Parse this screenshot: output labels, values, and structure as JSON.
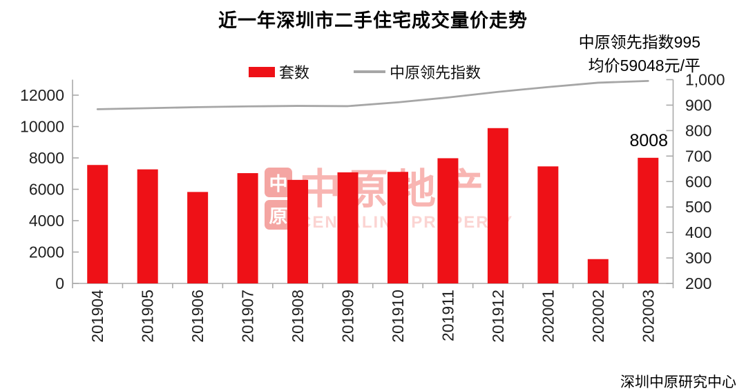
{
  "title": "近一年深圳市二手住宅成交量价走势",
  "legend": {
    "items": [
      {
        "label": "套数",
        "marker": "bar-swatch",
        "color": "#ee1117"
      },
      {
        "label": "中原领先指数",
        "marker": "line-swatch",
        "color": "#a6a6a6"
      }
    ]
  },
  "annotation": {
    "line1": "中原领先指数995",
    "line2": "均价59048元/平"
  },
  "footer": "深圳中原研究中心",
  "watermark": {
    "seal_top_char": "中",
    "seal_bottom_char": "原",
    "brand": "中原地产",
    "brand_en": "CENTALINE PROPERTY"
  },
  "chart_data": {
    "type": "combo",
    "title": "近一年深圳市二手住宅成交量价走势",
    "categories": [
      "201904",
      "201905",
      "201906",
      "201907",
      "201908",
      "201909",
      "201910",
      "201911",
      "201912",
      "202001",
      "202002",
      "202003"
    ],
    "series": [
      {
        "name": "套数",
        "type": "bar",
        "axis": "left",
        "color": "#ee1117",
        "values": [
          7550,
          7270,
          5830,
          7030,
          6600,
          7080,
          7110,
          7980,
          9900,
          7460,
          1550,
          8008
        ]
      },
      {
        "name": "中原领先指数",
        "type": "line",
        "axis": "right",
        "color": "#a6a6a6",
        "values": [
          884,
          888,
          892,
          895,
          897,
          896,
          911,
          930,
          952,
          971,
          988,
          995
        ]
      }
    ],
    "bar_data_label": {
      "category": "202003",
      "text": "8008"
    },
    "left_axis": {
      "min": 0,
      "max": 12000,
      "ticks": [
        0,
        2000,
        4000,
        6000,
        8000,
        10000,
        12000
      ],
      "tick_labels": [
        "0",
        "2000",
        "4000",
        "6000",
        "8000",
        "10000",
        "12000"
      ]
    },
    "right_axis": {
      "min": 200,
      "max": 1000,
      "ticks": [
        200,
        300,
        400,
        500,
        600,
        700,
        800,
        900,
        1000
      ],
      "tick_labels": [
        "200",
        "300",
        "400",
        "500",
        "600",
        "700",
        "800",
        "900",
        "1,000"
      ]
    },
    "grid": false,
    "legend_position": "top",
    "axis_color": "#a9a9a9",
    "tick_label_color": "#1f1f1f"
  }
}
